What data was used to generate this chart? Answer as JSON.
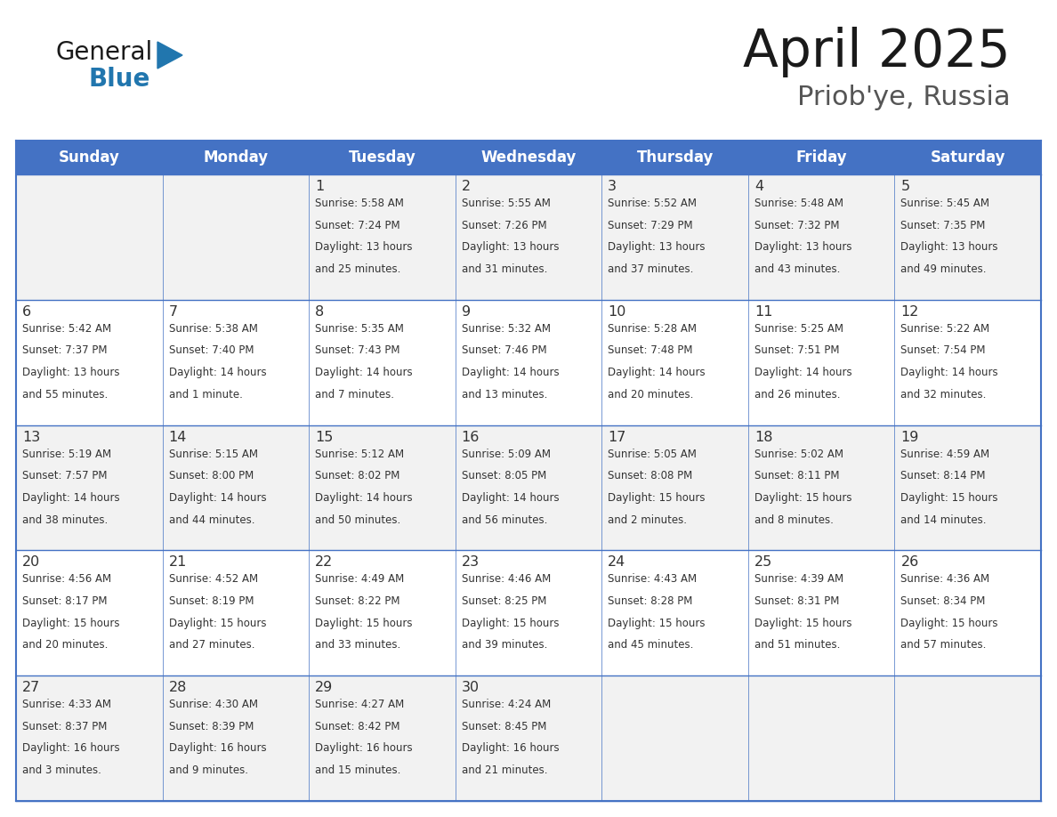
{
  "title": "April 2025",
  "subtitle": "Priob'ye, Russia",
  "header_bg": "#4472C4",
  "header_text_color": "#FFFFFF",
  "cell_bg_even": "#F2F2F2",
  "cell_bg_odd": "#FFFFFF",
  "border_color": "#4472C4",
  "text_color": "#333333",
  "days_of_week": [
    "Sunday",
    "Monday",
    "Tuesday",
    "Wednesday",
    "Thursday",
    "Friday",
    "Saturday"
  ],
  "weeks": [
    [
      {
        "day": "",
        "info": ""
      },
      {
        "day": "",
        "info": ""
      },
      {
        "day": "1",
        "info": "Sunrise: 5:58 AM\nSunset: 7:24 PM\nDaylight: 13 hours\nand 25 minutes."
      },
      {
        "day": "2",
        "info": "Sunrise: 5:55 AM\nSunset: 7:26 PM\nDaylight: 13 hours\nand 31 minutes."
      },
      {
        "day": "3",
        "info": "Sunrise: 5:52 AM\nSunset: 7:29 PM\nDaylight: 13 hours\nand 37 minutes."
      },
      {
        "day": "4",
        "info": "Sunrise: 5:48 AM\nSunset: 7:32 PM\nDaylight: 13 hours\nand 43 minutes."
      },
      {
        "day": "5",
        "info": "Sunrise: 5:45 AM\nSunset: 7:35 PM\nDaylight: 13 hours\nand 49 minutes."
      }
    ],
    [
      {
        "day": "6",
        "info": "Sunrise: 5:42 AM\nSunset: 7:37 PM\nDaylight: 13 hours\nand 55 minutes."
      },
      {
        "day": "7",
        "info": "Sunrise: 5:38 AM\nSunset: 7:40 PM\nDaylight: 14 hours\nand 1 minute."
      },
      {
        "day": "8",
        "info": "Sunrise: 5:35 AM\nSunset: 7:43 PM\nDaylight: 14 hours\nand 7 minutes."
      },
      {
        "day": "9",
        "info": "Sunrise: 5:32 AM\nSunset: 7:46 PM\nDaylight: 14 hours\nand 13 minutes."
      },
      {
        "day": "10",
        "info": "Sunrise: 5:28 AM\nSunset: 7:48 PM\nDaylight: 14 hours\nand 20 minutes."
      },
      {
        "day": "11",
        "info": "Sunrise: 5:25 AM\nSunset: 7:51 PM\nDaylight: 14 hours\nand 26 minutes."
      },
      {
        "day": "12",
        "info": "Sunrise: 5:22 AM\nSunset: 7:54 PM\nDaylight: 14 hours\nand 32 minutes."
      }
    ],
    [
      {
        "day": "13",
        "info": "Sunrise: 5:19 AM\nSunset: 7:57 PM\nDaylight: 14 hours\nand 38 minutes."
      },
      {
        "day": "14",
        "info": "Sunrise: 5:15 AM\nSunset: 8:00 PM\nDaylight: 14 hours\nand 44 minutes."
      },
      {
        "day": "15",
        "info": "Sunrise: 5:12 AM\nSunset: 8:02 PM\nDaylight: 14 hours\nand 50 minutes."
      },
      {
        "day": "16",
        "info": "Sunrise: 5:09 AM\nSunset: 8:05 PM\nDaylight: 14 hours\nand 56 minutes."
      },
      {
        "day": "17",
        "info": "Sunrise: 5:05 AM\nSunset: 8:08 PM\nDaylight: 15 hours\nand 2 minutes."
      },
      {
        "day": "18",
        "info": "Sunrise: 5:02 AM\nSunset: 8:11 PM\nDaylight: 15 hours\nand 8 minutes."
      },
      {
        "day": "19",
        "info": "Sunrise: 4:59 AM\nSunset: 8:14 PM\nDaylight: 15 hours\nand 14 minutes."
      }
    ],
    [
      {
        "day": "20",
        "info": "Sunrise: 4:56 AM\nSunset: 8:17 PM\nDaylight: 15 hours\nand 20 minutes."
      },
      {
        "day": "21",
        "info": "Sunrise: 4:52 AM\nSunset: 8:19 PM\nDaylight: 15 hours\nand 27 minutes."
      },
      {
        "day": "22",
        "info": "Sunrise: 4:49 AM\nSunset: 8:22 PM\nDaylight: 15 hours\nand 33 minutes."
      },
      {
        "day": "23",
        "info": "Sunrise: 4:46 AM\nSunset: 8:25 PM\nDaylight: 15 hours\nand 39 minutes."
      },
      {
        "day": "24",
        "info": "Sunrise: 4:43 AM\nSunset: 8:28 PM\nDaylight: 15 hours\nand 45 minutes."
      },
      {
        "day": "25",
        "info": "Sunrise: 4:39 AM\nSunset: 8:31 PM\nDaylight: 15 hours\nand 51 minutes."
      },
      {
        "day": "26",
        "info": "Sunrise: 4:36 AM\nSunset: 8:34 PM\nDaylight: 15 hours\nand 57 minutes."
      }
    ],
    [
      {
        "day": "27",
        "info": "Sunrise: 4:33 AM\nSunset: 8:37 PM\nDaylight: 16 hours\nand 3 minutes."
      },
      {
        "day": "28",
        "info": "Sunrise: 4:30 AM\nSunset: 8:39 PM\nDaylight: 16 hours\nand 9 minutes."
      },
      {
        "day": "29",
        "info": "Sunrise: 4:27 AM\nSunset: 8:42 PM\nDaylight: 16 hours\nand 15 minutes."
      },
      {
        "day": "30",
        "info": "Sunrise: 4:24 AM\nSunset: 8:45 PM\nDaylight: 16 hours\nand 21 minutes."
      },
      {
        "day": "",
        "info": ""
      },
      {
        "day": "",
        "info": ""
      },
      {
        "day": "",
        "info": ""
      }
    ]
  ],
  "logo_general_color": "#1a1a1a",
  "logo_blue_color": "#2176AE",
  "logo_triangle_color": "#2176AE"
}
